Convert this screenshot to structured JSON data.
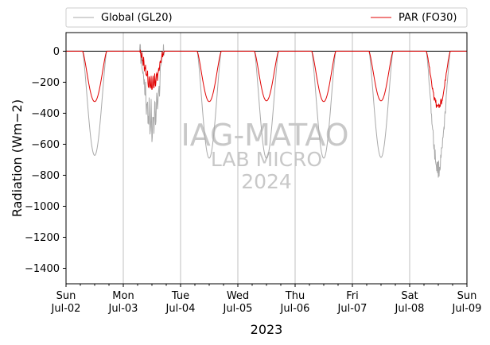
{
  "chart_data": {
    "type": "line",
    "xlabel": "2023",
    "ylabel": "Radiation (Wm−2)",
    "ylim": [
      -1500,
      120
    ],
    "yticks": [
      0,
      -200,
      -400,
      -600,
      -800,
      -1000,
      -1200,
      -1400
    ],
    "xlim_days": [
      0,
      7
    ],
    "xticks": [
      {
        "day": "Sun",
        "date": "Jul-02"
      },
      {
        "day": "Mon",
        "date": "Jul-03"
      },
      {
        "day": "Tue",
        "date": "Jul-04"
      },
      {
        "day": "Wed",
        "date": "Jul-05"
      },
      {
        "day": "Thu",
        "date": "Jul-06"
      },
      {
        "day": "Fri",
        "date": "Jul-07"
      },
      {
        "day": "Sat",
        "date": "Jul-08"
      },
      {
        "day": "Sun",
        "date": "Jul-09"
      }
    ],
    "vertical_grid": true,
    "zero_line": true,
    "legend_position": "top-outside",
    "series": [
      {
        "name": "Global (GL20)",
        "color": "#a9a9a9",
        "daily_min": [
          -672,
          -600,
          -690,
          -690,
          -690,
          -685,
          -760
        ]
      },
      {
        "name": "PAR (FO30)",
        "color": "#e00000",
        "daily_min": [
          -325,
          -285,
          -325,
          -320,
          -325,
          -320,
          -360
        ]
      }
    ],
    "watermark": [
      "IAG-MATAO",
      "LAB MICRO",
      "2024"
    ]
  }
}
